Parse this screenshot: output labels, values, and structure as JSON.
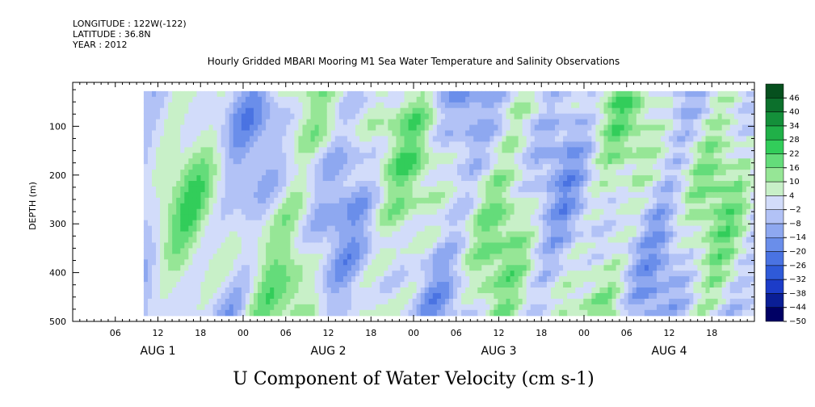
{
  "header": {
    "longitude": "LONGITUDE : 122W(-122)",
    "latitude": "LATITUDE : 36.8N",
    "year": "YEAR : 2012"
  },
  "chart_data": {
    "type": "heatmap",
    "title": "Hourly Gridded MBARI Mooring M1 Sea Water Temperature and Salinity Observations",
    "xlabel": "U Component of Water Velocity (cm s-1)",
    "ylabel": "DEPTH (m)",
    "x_range_hours": [
      0,
      96
    ],
    "data_start_hour": 10,
    "y_ticks": [
      100,
      200,
      300,
      400,
      500
    ],
    "ylim": [
      500,
      10
    ],
    "data_depth_range": [
      28,
      488
    ],
    "hour_tick_labels": [
      "06",
      "12",
      "18",
      "00",
      "06",
      "12",
      "18",
      "00",
      "06",
      "12",
      "18",
      "00",
      "06",
      "12",
      "18"
    ],
    "hour_tick_values": [
      6,
      12,
      18,
      24,
      30,
      36,
      42,
      48,
      54,
      60,
      66,
      72,
      78,
      84,
      90
    ],
    "day_labels": [
      "AUG  1",
      "AUG  2",
      "AUG  3",
      "AUG  4"
    ],
    "day_label_hours": [
      12,
      36,
      60,
      84
    ],
    "colorbar": {
      "levels": [
        -50,
        -44,
        -38,
        -32,
        -26,
        -20,
        -14,
        -8,
        -2,
        4,
        10,
        16,
        22,
        28,
        34,
        40,
        46
      ],
      "colors": [
        "#000064",
        "#0a1e96",
        "#1c3cc8",
        "#2f5ad8",
        "#4a73e2",
        "#6a8eea",
        "#8ea8f0",
        "#b2c2f6",
        "#d2dcfa",
        "#c8f0c8",
        "#96e696",
        "#64dc7a",
        "#32cd5a",
        "#20b048",
        "#14903a",
        "#0c702c",
        "#06501e"
      ]
    }
  }
}
